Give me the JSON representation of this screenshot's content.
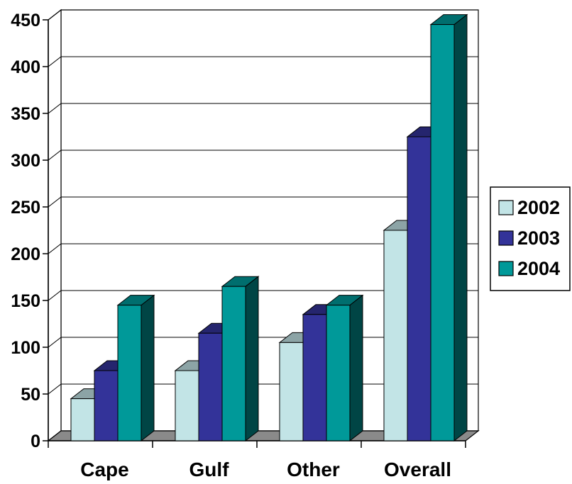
{
  "chart_data": {
    "type": "bar",
    "categories": [
      "Cape",
      "Gulf",
      "Other",
      "Overall"
    ],
    "series": [
      {
        "name": "2002",
        "values": [
          45,
          75,
          105,
          225
        ],
        "color": "#c2e4e6"
      },
      {
        "name": "2003",
        "values": [
          75,
          115,
          135,
          325
        ],
        "color": "#333399"
      },
      {
        "name": "2004",
        "values": [
          145,
          165,
          145,
          445
        ],
        "color": "#009999"
      }
    ],
    "y_ticks": [
      "0",
      "50",
      "100",
      "150",
      "200",
      "250",
      "300",
      "350",
      "400",
      "450"
    ],
    "ylim": [
      0,
      450
    ],
    "grid": true,
    "legend_position": "right",
    "style": "3d-clustered-column"
  }
}
